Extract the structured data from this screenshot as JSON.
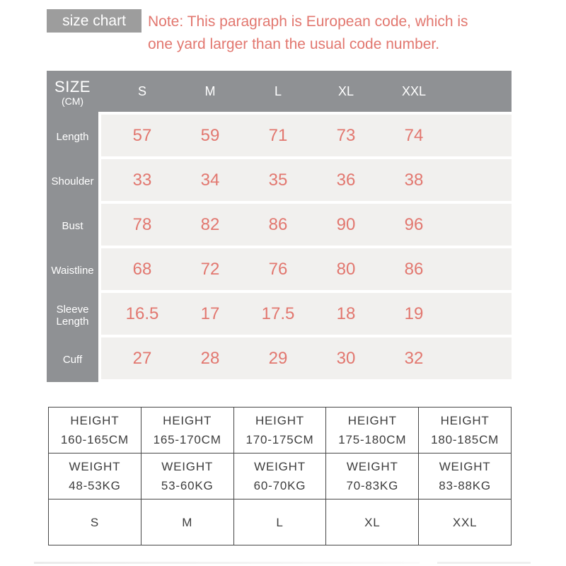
{
  "header": {
    "badge": "size chart",
    "note_line1": "Note: This paragraph is European code, which is",
    "note_line2": "one yard larger than the usual code number."
  },
  "size_table": {
    "corner_title": "SIZE",
    "corner_unit": "(CM)",
    "columns": [
      "S",
      "M",
      "L",
      "XL",
      "XXL"
    ],
    "rows": [
      {
        "label": "Length",
        "values": [
          "57",
          "59",
          "71",
          "73",
          "74"
        ]
      },
      {
        "label": "Shoulder",
        "values": [
          "33",
          "34",
          "35",
          "36",
          "38"
        ]
      },
      {
        "label": "Bust",
        "values": [
          "78",
          "82",
          "86",
          "90",
          "96"
        ]
      },
      {
        "label": "Waistline",
        "values": [
          "68",
          "72",
          "76",
          "80",
          "86"
        ]
      },
      {
        "label": "Sleeve Length",
        "values": [
          "16.5",
          "17",
          "17.5",
          "18",
          "19"
        ]
      },
      {
        "label": "Cuff",
        "values": [
          "27",
          "28",
          "29",
          "30",
          "32"
        ]
      }
    ]
  },
  "fit_table": {
    "height_label": "HEIGHT",
    "weight_label": "WEIGHT",
    "heights": [
      "160-165CM",
      "165-170CM",
      "170-175CM",
      "175-180CM",
      "180-185CM"
    ],
    "weights": [
      "48-53KG",
      "53-60KG",
      "60-70KG",
      "70-83KG",
      "83-88KG"
    ],
    "sizes": [
      "S",
      "M",
      "L",
      "XL",
      "XXL"
    ]
  },
  "colors": {
    "accent_coral": "#e2776f",
    "badge_gray": "#9d9d9d",
    "table_gray": "#8f9194",
    "row_light": "#f1f0ee",
    "fit_border": "#474747",
    "fit_text": "#3d3d3d"
  },
  "chart_data": [
    {
      "type": "table",
      "title": "size chart",
      "unit": "CM",
      "columns": [
        "S",
        "M",
        "L",
        "XL",
        "XXL"
      ],
      "rows": [
        {
          "label": "Length",
          "values": [
            57,
            59,
            71,
            73,
            74
          ]
        },
        {
          "label": "Shoulder",
          "values": [
            33,
            34,
            35,
            36,
            38
          ]
        },
        {
          "label": "Bust",
          "values": [
            78,
            82,
            86,
            90,
            96
          ]
        },
        {
          "label": "Waistline",
          "values": [
            68,
            72,
            76,
            80,
            86
          ]
        },
        {
          "label": "Sleeve Length",
          "values": [
            16.5,
            17,
            17.5,
            18,
            19
          ]
        },
        {
          "label": "Cuff",
          "values": [
            27,
            28,
            29,
            30,
            32
          ]
        }
      ],
      "annotation": "Note: This paragraph is European code, which is one yard larger than the usual code number."
    },
    {
      "type": "table",
      "columns": [
        "S",
        "M",
        "L",
        "XL",
        "XXL"
      ],
      "rows": [
        {
          "label": "HEIGHT",
          "values": [
            "160-165CM",
            "165-170CM",
            "170-175CM",
            "175-180CM",
            "180-185CM"
          ]
        },
        {
          "label": "WEIGHT",
          "values": [
            "48-53KG",
            "53-60KG",
            "60-70KG",
            "70-83KG",
            "83-88KG"
          ]
        },
        {
          "label": "SIZE",
          "values": [
            "S",
            "M",
            "L",
            "XL",
            "XXL"
          ]
        }
      ]
    }
  ]
}
